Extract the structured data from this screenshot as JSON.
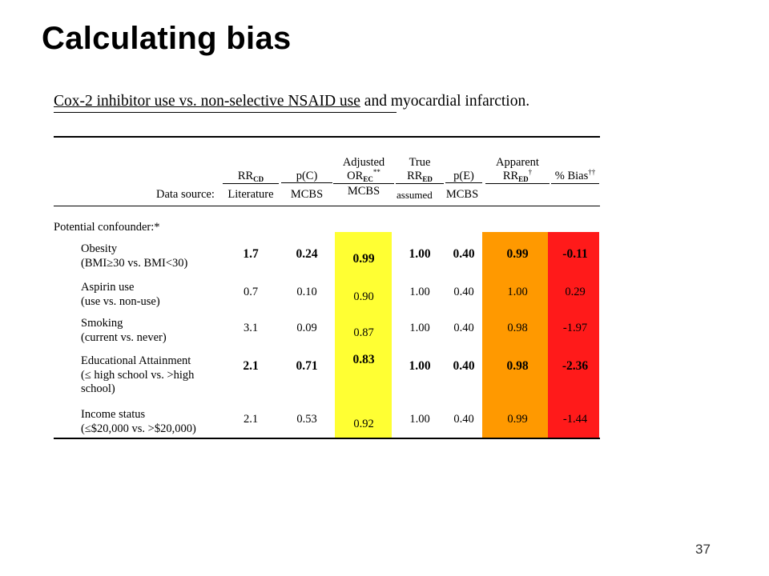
{
  "slide": {
    "title": "Calculating bias",
    "page_number": "37",
    "caption_underlined": "Cox-2 inhibitor use vs. non-selective NSAID use",
    "caption_rest": " and myocardial infarction."
  },
  "headers": {
    "rr_cd_main": "RR",
    "rr_cd_sub": "CD",
    "pc": "p(C)",
    "adj_line1": "Adjusted",
    "adj_main": "OR",
    "adj_sub": "EC",
    "adj_sup": "**",
    "true_line1": "True",
    "true_main": "RR",
    "true_sub": "ED",
    "pe": "p(E)",
    "app_line1": "Apparent",
    "app_main": "RR",
    "app_sub": "ED",
    "app_sup": "†",
    "bias": "% Bias",
    "bias_sup": "††"
  },
  "data_source": {
    "label": "Data source:",
    "rr_cd": "Literature",
    "pc": "MCBS",
    "adj": "MCBS",
    "true": "assumed",
    "pe": "MCBS"
  },
  "confounder_label": "Potential confounder:*",
  "colors": {
    "adjusted_column": "#ffff33",
    "apparent_column": "#ff9900",
    "bias_column": "#ff1a1a"
  },
  "rows": [
    {
      "name_line1": "Obesity",
      "name_line2": "(BMI≥30 vs. BMI<30)",
      "name_line3": "",
      "rr_cd": "1.7",
      "pc": "0.24",
      "adj": "0.99",
      "true": "1.00",
      "pe": "0.40",
      "app": "0.99",
      "bias": "-0.11",
      "bold": true
    },
    {
      "name_line1": "Aspirin use",
      "name_line2": "(use vs. non-use)",
      "name_line3": "",
      "rr_cd": "0.7",
      "pc": "0.10",
      "adj": "0.90",
      "true": "1.00",
      "pe": "0.40",
      "app": "1.00",
      "bias": "0.29",
      "bold": false
    },
    {
      "name_line1": "Smoking",
      "name_line2": "(current vs. never)",
      "name_line3": "",
      "rr_cd": "3.1",
      "pc": "0.09",
      "adj": "0.87",
      "true": "1.00",
      "pe": "0.40",
      "app": "0.98",
      "bias": "-1.97",
      "bold": false
    },
    {
      "name_line1": "Educational Attainment",
      "name_line2": "(≤ high school vs. >high",
      "name_line3": "school)",
      "rr_cd": "2.1",
      "pc": "0.71",
      "adj": "0.83",
      "true": "1.00",
      "pe": "0.40",
      "app": "0.98",
      "bias": "-2.36",
      "bold": true
    },
    {
      "name_line1": "Income status",
      "name_line2": "(≤$20,000 vs. >$20,000)",
      "name_line3": "",
      "rr_cd": "2.1",
      "pc": "0.53",
      "adj": "0.92",
      "true": "1.00",
      "pe": "0.40",
      "app": "0.99",
      "bias": "-1.44",
      "bold": false
    }
  ]
}
